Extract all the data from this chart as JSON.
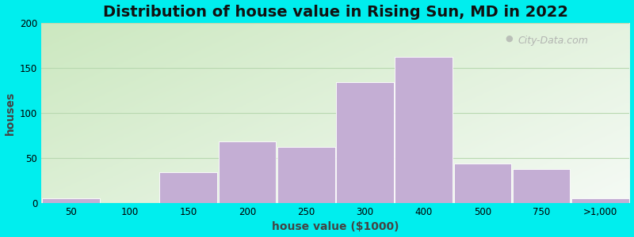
{
  "title": "Distribution of house value in Rising Sun, MD in 2022",
  "xlabel": "house value ($1000)",
  "ylabel": "houses",
  "bar_color": "#c4aed4",
  "bar_edgecolor": "#ffffff",
  "background_outer": "#00eeee",
  "ylim": [
    0,
    200
  ],
  "yticks": [
    0,
    50,
    100,
    150,
    200
  ],
  "tick_labels": [
    "50",
    "100",
    "150",
    "200",
    "250",
    "300",
    "400",
    "500",
    "750",
    ">1,000"
  ],
  "values": [
    5,
    0,
    34,
    68,
    62,
    134,
    162,
    44,
    38,
    5
  ],
  "title_fontsize": 14,
  "axis_label_fontsize": 10,
  "tick_fontsize": 8.5,
  "watermark_text": "City-Data.com",
  "bg_left_color": "#cce8c0",
  "bg_right_color": "#e8f5f0",
  "gridline_color": "#d0e8c8"
}
